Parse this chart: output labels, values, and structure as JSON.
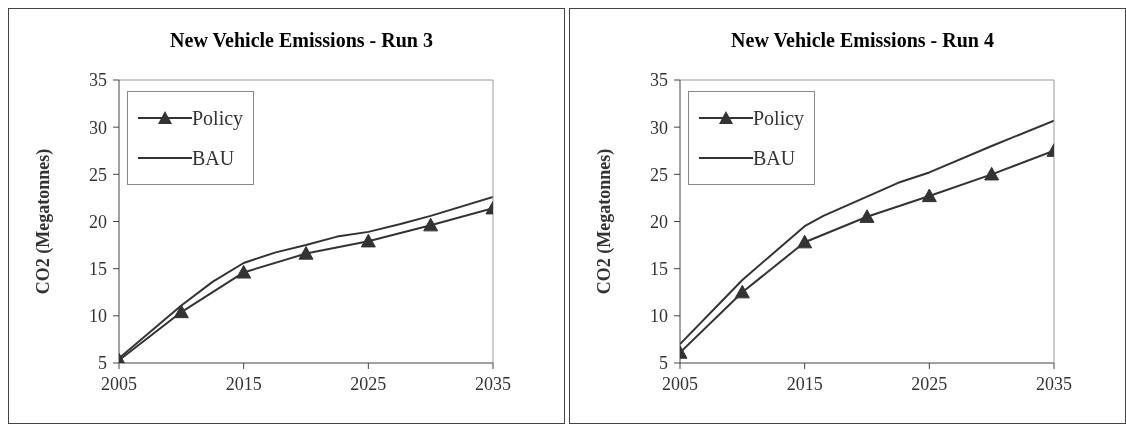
{
  "chart_data": [
    {
      "type": "line",
      "title": "New Vehicle Emissions - Run 3",
      "ylabel": "CO2 (Megatonnes)",
      "xlim": [
        2005,
        2035
      ],
      "xticks": [
        2005,
        2015,
        2025,
        2035
      ],
      "ylim": [
        5,
        35
      ],
      "yticks": [
        5,
        10,
        15,
        20,
        25,
        30,
        35
      ],
      "grid": false,
      "legend": "top left",
      "series": [
        {
          "name": "Policy",
          "color": "#333333",
          "marker": "triangle",
          "x": [
            2005,
            2010,
            2015,
            2020,
            2025,
            2030,
            2035
          ],
          "values": [
            5.3,
            10.4,
            14.6,
            16.6,
            17.9,
            19.6,
            21.4
          ]
        },
        {
          "name": "BAU",
          "color": "#333333",
          "marker": "none",
          "x": [
            2005,
            2010,
            2012.5,
            2015,
            2017.5,
            2020,
            2022.5,
            2025,
            2027.5,
            2030,
            2035
          ],
          "values": [
            5.5,
            11.1,
            13.6,
            15.6,
            16.7,
            17.5,
            18.4,
            18.9,
            19.7,
            20.6,
            22.6
          ]
        }
      ]
    },
    {
      "type": "line",
      "title": "New Vehicle Emissions - Run 4",
      "ylabel": "CO2 (Megatonnes)",
      "xlim": [
        2005,
        2035
      ],
      "xticks": [
        2005,
        2015,
        2025,
        2035
      ],
      "ylim": [
        5,
        35
      ],
      "yticks": [
        5,
        10,
        15,
        20,
        25,
        30,
        35
      ],
      "grid": false,
      "legend": "top left",
      "series": [
        {
          "name": "Policy",
          "color": "#333333",
          "marker": "triangle",
          "x": [
            2005,
            2010,
            2015,
            2020,
            2025,
            2030,
            2035
          ],
          "values": [
            6.1,
            12.5,
            17.8,
            20.5,
            22.7,
            25.0,
            27.5
          ]
        },
        {
          "name": "BAU",
          "color": "#333333",
          "marker": "none",
          "x": [
            2005,
            2010,
            2015,
            2016.5,
            2022.5,
            2025,
            2030,
            2035
          ],
          "values": [
            7.0,
            13.8,
            19.5,
            20.6,
            24.1,
            25.2,
            28.0,
            30.7
          ]
        }
      ]
    }
  ]
}
